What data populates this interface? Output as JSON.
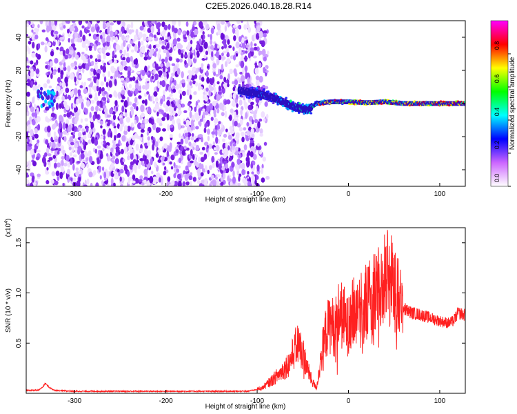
{
  "figure_title": "C2E5.2026.040.18.28.R14",
  "chart_data": [
    {
      "type": "heatmap",
      "title": "C2E5.2026.040.18.28.R14",
      "xlabel": "Height of straight line (km)",
      "ylabel": "Frequency (Hz)",
      "xlim": [
        -353,
        128
      ],
      "ylim": [
        -50,
        50
      ],
      "xticks": [
        -300,
        -200,
        -100,
        0,
        100
      ],
      "yticks": [
        -40,
        -20,
        0,
        20,
        40
      ],
      "colorbar": {
        "label": "Normalized spectral amplitude",
        "range": [
          0,
          1
        ],
        "ticks": [
          "0.0",
          "0.2",
          "0.4",
          "0.6",
          "0.8"
        ],
        "colors": [
          "#ffffff",
          "#cc66ff",
          "#0000ff",
          "#00ffff",
          "#00ff00",
          "#ffff00",
          "#ff0000",
          "#ff00ff"
        ]
      },
      "regions": [
        {
          "name": "broadband noise",
          "x": [
            -353,
            -88
          ],
          "freq": [
            -50,
            50
          ],
          "amplitude": 0.1
        },
        {
          "name": "low-frequency burst",
          "x": [
            -340,
            -322
          ],
          "freq": [
            -2,
            9
          ],
          "amplitude": 0.25
        },
        {
          "name": "ridge",
          "x": [
            -120,
            128
          ],
          "amplitude": [
            0.2,
            0.95
          ],
          "freq_center": [
            [
              -120,
              8
            ],
            [
              -100,
              6
            ],
            [
              -80,
              3
            ],
            [
              -60,
              -2
            ],
            [
              -45,
              -4
            ],
            [
              -35,
              0
            ],
            [
              -20,
              1
            ],
            [
              0,
              1
            ],
            [
              20,
              0.5
            ],
            [
              40,
              1
            ],
            [
              60,
              0
            ],
            [
              80,
              0
            ],
            [
              100,
              0
            ],
            [
              128,
              0
            ]
          ]
        }
      ],
      "grid": false
    },
    {
      "type": "line",
      "xlabel": "Height of straight line (km)",
      "ylabel": "SNR (10 * v/v)",
      "y_multiplier": "(x10^4)",
      "xlim": [
        -353,
        128
      ],
      "ylim": [
        0,
        1.65
      ],
      "xticks": [
        -300,
        -200,
        -100,
        0,
        100
      ],
      "yticks": [
        "0.5",
        "1.0",
        "1.5"
      ],
      "color": "#ff0000",
      "series": [
        {
          "x": [
            -353,
            -340,
            -335,
            -332,
            -328,
            -322,
            -300,
            -200,
            -110,
            -95,
            -85,
            -75,
            -65,
            -58,
            -55,
            -50,
            -45,
            -40,
            -35,
            -30,
            -25,
            -20,
            -15,
            -10,
            -5,
            0,
            5,
            10,
            15,
            20,
            25,
            30,
            35,
            40,
            44,
            48,
            52,
            55,
            60,
            65,
            70,
            80,
            90,
            100,
            110,
            115,
            120,
            128
          ],
          "y": [
            0.03,
            0.03,
            0.06,
            0.1,
            0.06,
            0.03,
            0.02,
            0.02,
            0.02,
            0.05,
            0.12,
            0.2,
            0.3,
            0.45,
            0.5,
            0.4,
            0.25,
            0.12,
            0.05,
            0.35,
            0.6,
            0.7,
            0.65,
            0.8,
            0.75,
            0.65,
            0.8,
            0.82,
            0.85,
            0.9,
            0.95,
            0.98,
            1.05,
            1.15,
            1.2,
            1.1,
            1.0,
            0.95,
            0.85,
            0.82,
            0.8,
            0.78,
            0.75,
            0.72,
            0.7,
            0.72,
            0.8,
            0.78
          ]
        }
      ],
      "grid": false
    }
  ]
}
